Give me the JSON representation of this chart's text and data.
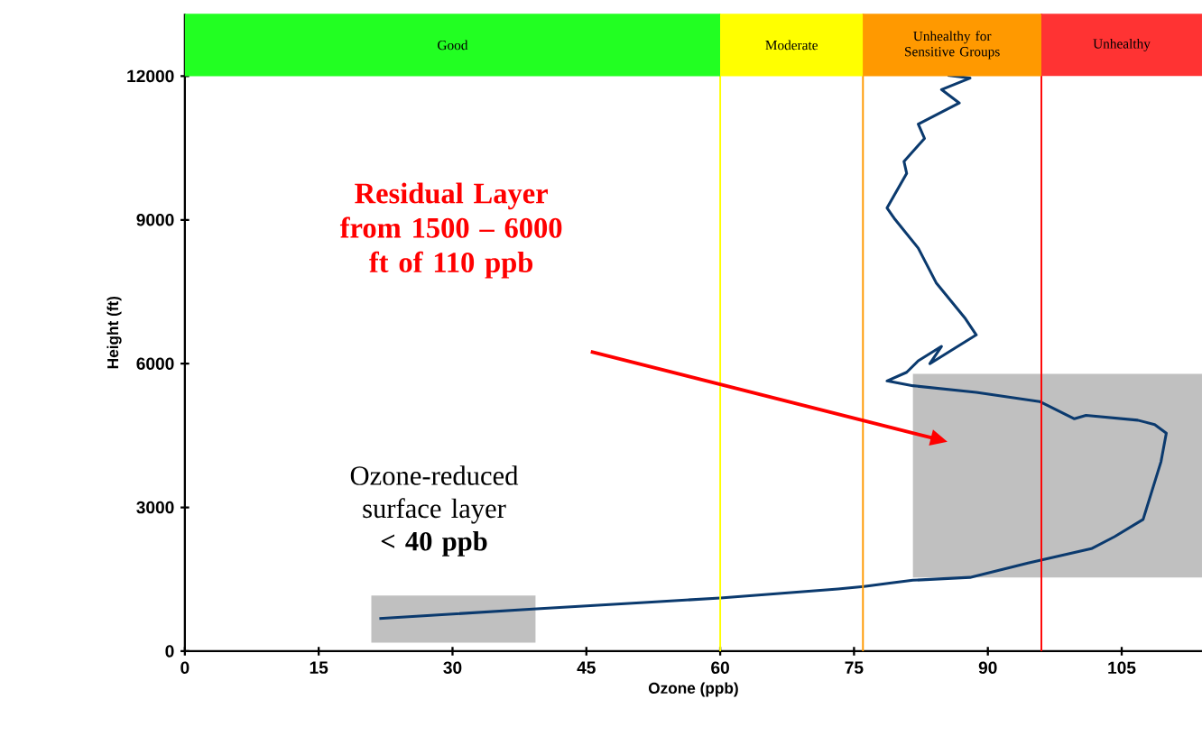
{
  "chart_data": {
    "type": "line",
    "xlabel": "Ozone (ppb)",
    "ylabel": "Height (ft)",
    "xlim": [
      0,
      114
    ],
    "xticks": [
      0,
      15,
      30,
      45,
      60,
      75,
      90,
      105
    ],
    "ylim": [
      0,
      13300
    ],
    "yticks": [
      0,
      3000,
      6000,
      9000,
      12000
    ],
    "series": [
      {
        "color": "#0b3a6e",
        "x": [
          21.8,
          39,
          51.9,
          60,
          73.2,
          76.1,
          79,
          81.6,
          88,
          94.5,
          101.6,
          104.2,
          107.4,
          109.4,
          110,
          108.7,
          106.8,
          101,
          99.7,
          95.8,
          88.7,
          81.6,
          78.7,
          80.9,
          82.2,
          84.8,
          83.5,
          88.7,
          87.4,
          84.2,
          82.2,
          79.6,
          78.7,
          80.9,
          80.6,
          82.9,
          82.2,
          86.8,
          84.8,
          88,
          85.5
        ],
        "values": [
          680,
          880,
          1020,
          1110,
          1300,
          1350,
          1420,
          1480,
          1540,
          1840,
          2140,
          2390,
          2750,
          3950,
          4550,
          4730,
          4820,
          4920,
          4850,
          5210,
          5400,
          5540,
          5640,
          5820,
          6060,
          6360,
          6000,
          6600,
          6960,
          7690,
          8410,
          9010,
          9250,
          9970,
          10220,
          10700,
          11000,
          11440,
          11720,
          11960,
          12020
        ]
      }
    ],
    "ref_lines": [
      {
        "axis": "x",
        "value": 60,
        "color": "#ffff00"
      },
      {
        "axis": "x",
        "value": 76,
        "color": "#ff9900"
      },
      {
        "axis": "x",
        "value": 96,
        "color": "#ff0000"
      }
    ],
    "bands": [
      {
        "axis": "x",
        "from": 0,
        "to": 60,
        "label": "Good",
        "color": "#22ff22"
      },
      {
        "axis": "x",
        "from": 60,
        "to": 76,
        "label": "Moderate",
        "color": "#ffff00"
      },
      {
        "axis": "x",
        "from": 76,
        "to": 96,
        "label": "Unhealthy for Sensitive Groups",
        "color": "#ff9900"
      },
      {
        "axis": "x",
        "from": 96,
        "to": 114,
        "label": "Unhealthy",
        "color": "#ff3333"
      }
    ],
    "annotations": [
      "Residual Layer from 1500 – 6000 ft of 110 ppb",
      "Ozone-reduced surface layer **< 40 ppb**"
    ],
    "grid": false
  }
}
